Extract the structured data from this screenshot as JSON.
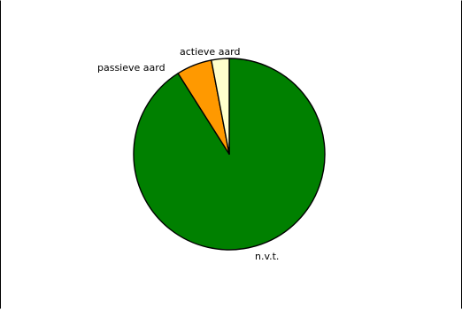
{
  "chart_data": {
    "type": "pie",
    "title": "",
    "slices": [
      {
        "label": "n.v.t.",
        "value": 91,
        "color": "#008000"
      },
      {
        "label": "passieve aard",
        "value": 6,
        "color": "#FF9900"
      },
      {
        "label": "actieve aard",
        "value": 3,
        "color": "#FFFFCC"
      }
    ],
    "start": "12 o'clock",
    "direction": "clockwise",
    "legend": "none",
    "labels": "outside slices"
  }
}
